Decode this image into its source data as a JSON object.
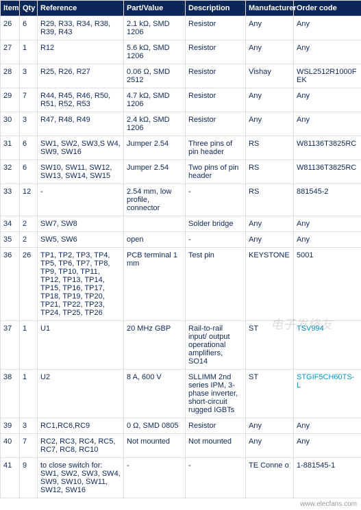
{
  "header_bg": "#0d2658",
  "header_color": "#ffffff",
  "cell_color": "#0d2658",
  "border_color": "#dae0e4",
  "link_color": "#0099cc",
  "columns": [
    "Item",
    "Qty",
    "Reference",
    "Part/Value",
    "Description",
    "Manufacturer",
    "Order code"
  ],
  "rows": [
    {
      "item": "26",
      "qty": "6",
      "reference": "R29, R33, R34, R38, R39, R43",
      "part": "2.1 kΩ, SMD 1206",
      "description": "Resistor",
      "manufacturer": "Any",
      "order": "Any"
    },
    {
      "item": "27",
      "qty": "1",
      "reference": "R12",
      "part": "5.6 kΩ, SMD 1206",
      "description": "Resistor",
      "manufacturer": "Any",
      "order": "Any"
    },
    {
      "item": "28",
      "qty": "3",
      "reference": "R25, R26, R27",
      "part": "0.06 Ω, SMD 2512",
      "description": "Resistor",
      "manufacturer": "Vishay",
      "order": "WSL2512R1000FEK"
    },
    {
      "item": "29",
      "qty": "7",
      "reference": "R44, R45, R46, R50, R51, R52, R53",
      "part": "4.7 kΩ, SMD 1206",
      "description": "Resistor",
      "manufacturer": "Any",
      "order": "Any"
    },
    {
      "item": "30",
      "qty": "3",
      "reference": "R47, R48, R49",
      "part": "2.4 kΩ, SMD 1206",
      "description": "Resistor",
      "manufacturer": "Any",
      "order": "Any"
    },
    {
      "item": "31",
      "qty": "6",
      "reference": "SW1, SW2, SW3,S W4, SW9, SW16",
      "part": "Jumper 2.54",
      "description": "Three pins of pin header",
      "manufacturer": "RS",
      "order": "W81136T3825RC"
    },
    {
      "item": "32",
      "qty": "6",
      "reference": "SW10, SW11, SW12, SW13, SW14, SW15",
      "part": "Jumper 2.54",
      "description": "Two pins of pin header",
      "manufacturer": "RS",
      "order": "W81136T3825RC"
    },
    {
      "item": "33",
      "qty": "12",
      "reference": "-",
      "part": "2.54 mm, low profile, connector",
      "description": "-",
      "manufacturer": "RS",
      "order": "881545-2"
    },
    {
      "item": "34",
      "qty": "2",
      "reference": "SW7, SW8",
      "part": "",
      "description": "Solder bridge",
      "manufacturer": "Any",
      "order": "Any"
    },
    {
      "item": "35",
      "qty": "2",
      "reference": "SW5, SW6",
      "part": "open",
      "description": "-",
      "manufacturer": "Any",
      "order": "Any"
    },
    {
      "item": "36",
      "qty": "26",
      "reference": "TP1, TP2, TP3, TP4, TP5, TP6, TP7, TP8, TP9, TP10, TP11, TP12, TP13, TP14, TP15, TP16, TP17, TP18, TP19, TP20, TP21, TP22, TP23, TP24, TP25, TP26",
      "part": "PCB terminal 1 mm",
      "description": "Test pin",
      "manufacturer": "KEYSTONE",
      "order": "5001"
    },
    {
      "item": "37",
      "qty": "1",
      "reference": "U1",
      "part": "20 MHz GBP",
      "description": "Rail-to-rail input/ output operational amplifiers, SO14",
      "manufacturer": "ST",
      "order": "TSV994",
      "link": true
    },
    {
      "item": "38",
      "qty": "1",
      "reference": "U2",
      "part": "8 A, 600 V",
      "description": "SLLIMM 2nd series IPM, 3-phase inverter, short-circuit rugged IGBTs",
      "manufacturer": "ST",
      "order": "STGIF5CH60TS-L",
      "link": true
    },
    {
      "item": "39",
      "qty": "3",
      "reference": "RC1,RC6,RC9",
      "part": "0 Ω, SMD 0805",
      "description": "Resistor",
      "manufacturer": "Any",
      "order": "Any"
    },
    {
      "item": "40",
      "qty": "7",
      "reference": "RC2, RC3, RC4, RC5, RC7, RC8, RC10",
      "part": "Not mounted",
      "description": "Not mounted",
      "manufacturer": "Any",
      "order": "Any"
    },
    {
      "item": "41",
      "qty": "9",
      "reference": "to close switch for: SW1, SW2, SW3, SW4, SW9, SW10, SW11, SW12, SW16",
      "part": "-",
      "description": "-",
      "manufacturer": "TE Conne o",
      "order": "1-881545-1"
    }
  ],
  "watermark": "电子发烧友",
  "footer": "www.elecfans.com"
}
